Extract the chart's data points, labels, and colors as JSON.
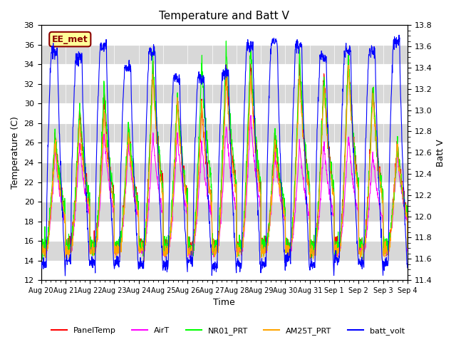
{
  "title": "Temperature and Batt V",
  "xlabel": "Time",
  "ylabel_left": "Temperature (C)",
  "ylabel_right": "Batt V",
  "annotation": "EE_met",
  "ylim_left": [
    12,
    38
  ],
  "ylim_right": [
    11.4,
    13.8
  ],
  "yticks_left": [
    12,
    14,
    16,
    18,
    20,
    22,
    24,
    26,
    28,
    30,
    32,
    34,
    36,
    38
  ],
  "yticks_right": [
    11.4,
    11.6,
    11.8,
    12.0,
    12.2,
    12.4,
    12.6,
    12.8,
    13.0,
    13.2,
    13.4,
    13.6,
    13.8
  ],
  "xtick_labels": [
    "Aug 20",
    "Aug 21",
    "Aug 22",
    "Aug 23",
    "Aug 24",
    "Aug 25",
    "Aug 26",
    "Aug 27",
    "Aug 28",
    "Aug 29",
    "Aug 30",
    "Aug 31",
    "Sep 1",
    "Sep 2",
    "Sep 3",
    "Sep 4"
  ],
  "colors": {
    "PanelTemp": "#ff0000",
    "AirT": "#ff00ff",
    "NR01_PRT": "#00ff00",
    "AM25T_PRT": "#ffa500",
    "batt_volt": "#0000ff"
  },
  "legend_entries": [
    "PanelTemp",
    "AirT",
    "NR01_PRT",
    "AM25T_PRT",
    "batt_volt"
  ],
  "background_color": "#ffffff",
  "plot_bg_color": "#e8e8e8",
  "band_color": "#d8d8d8",
  "grid_color": "#ffffff",
  "num_days": 15,
  "annotation_bg": "#ffff99",
  "annotation_edge": "#8b0000",
  "annotation_text_color": "#8b0000"
}
